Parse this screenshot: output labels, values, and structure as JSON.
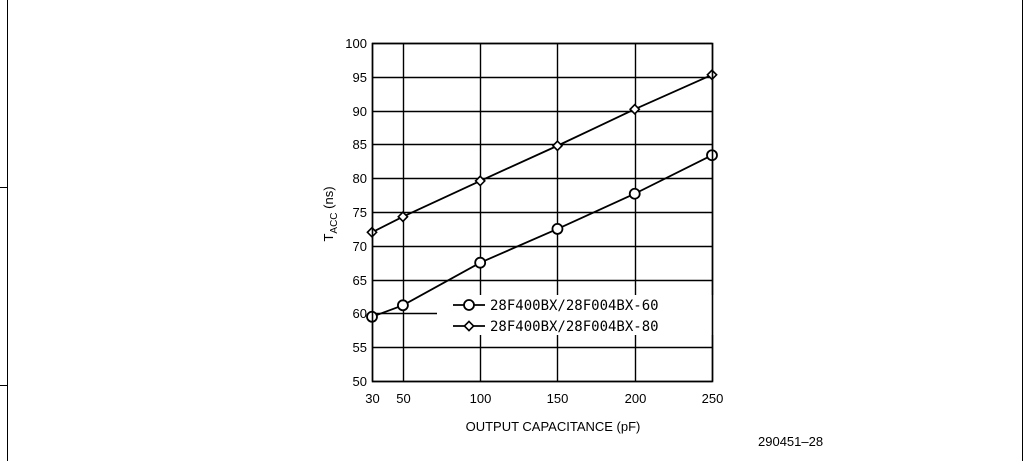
{
  "figure_id": "290451–28",
  "chart_data": {
    "type": "line",
    "xlabel": "OUTPUT CAPACITANCE (pF)",
    "ylabel_main": "T",
    "ylabel_sub": "ACC",
    "ylabel_unit": "(ns)",
    "xlim": [
      30,
      250
    ],
    "ylim": [
      50,
      100
    ],
    "x_ticks": [
      30,
      50,
      100,
      150,
      200,
      250
    ],
    "y_ticks": [
      50,
      55,
      60,
      65,
      70,
      75,
      80,
      85,
      90,
      95,
      100
    ],
    "grid": true,
    "legend_position": "lower-right",
    "series": [
      {
        "name": "28F400BX/28F004BX-60",
        "marker": "circle",
        "x": [
          30,
          50,
          100,
          150,
          200,
          250
        ],
        "y": [
          59.5,
          61.2,
          67.5,
          72.5,
          77.7,
          83.4
        ]
      },
      {
        "name": "28F400BX/28F004BX-80",
        "marker": "diamond",
        "x": [
          30,
          50,
          100,
          150,
          200,
          250
        ],
        "y": [
          72,
          74.3,
          79.6,
          84.8,
          90.2,
          95.3
        ]
      }
    ]
  }
}
